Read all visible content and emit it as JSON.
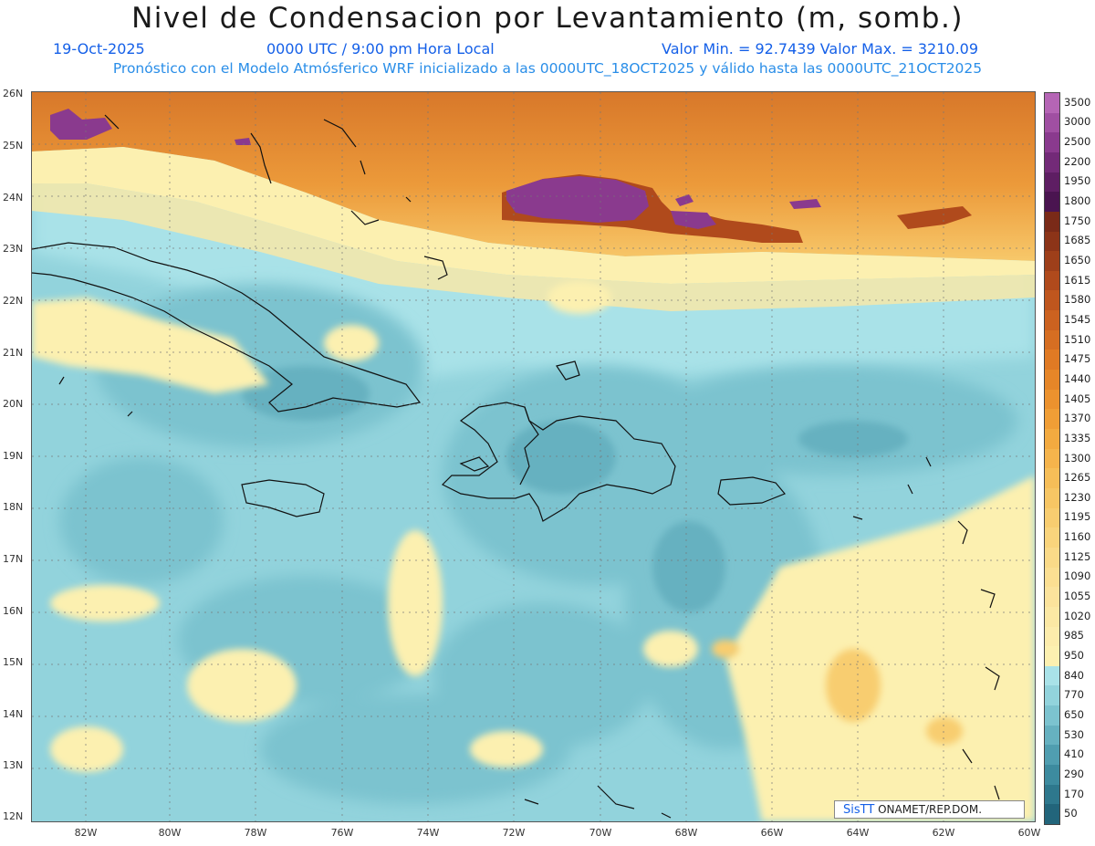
{
  "header": {
    "title": "Nivel de Condensacion por Levantamiento (m, somb.)",
    "date": "19-Oct-2025",
    "time": "0000 UTC / 9:00 pm Hora Local",
    "values": "Valor Min. = 92.7439   Valor Max. = 3210.09",
    "model_line": "Pronóstico con el Modelo Atmósferico WRF inicializado a las 0000UTC_18OCT2025 y válido hasta las  0000UTC_21OCT2025"
  },
  "map": {
    "lat_labels": [
      "26N",
      "25N",
      "24N",
      "23N",
      "22N",
      "21N",
      "20N",
      "19N",
      "18N",
      "17N",
      "16N",
      "15N",
      "14N",
      "13N",
      "12N"
    ],
    "lon_labels": [
      "82W",
      "80W",
      "78W",
      "76W",
      "74W",
      "72W",
      "70W",
      "68W",
      "66W",
      "64W",
      "62W",
      "60W"
    ]
  },
  "colorbar": {
    "labels": [
      "3500",
      "3000",
      "2500",
      "2200",
      "1950",
      "1800",
      "1750",
      "1685",
      "1650",
      "1615",
      "1580",
      "1545",
      "1510",
      "1475",
      "1440",
      "1405",
      "1370",
      "1335",
      "1300",
      "1265",
      "1230",
      "1195",
      "1160",
      "1125",
      "1090",
      "1055",
      "1020",
      "985",
      "950",
      "840",
      "770",
      "650",
      "530",
      "410",
      "290",
      "170",
      "50"
    ],
    "colors": [
      "#b565b5",
      "#a04fa2",
      "#8a3a8e",
      "#732a78",
      "#5e1e63",
      "#4a1450",
      "#7a2a18",
      "#8c3418",
      "#9e3f1a",
      "#b04a1c",
      "#bf561e",
      "#cc6220",
      "#d66e22",
      "#e07a24",
      "#e68628",
      "#ec922e",
      "#f09e36",
      "#f3aa40",
      "#f5b44c",
      "#f6be58",
      "#f7c664",
      "#f8cd70",
      "#f9d47c",
      "#fada88",
      "#fbdf92",
      "#fbe39c",
      "#fbe8a4",
      "#fcecac",
      "#fcf0b0",
      "#a9e2e8",
      "#92d3dc",
      "#7cc3cf",
      "#66b1c0",
      "#509eb0",
      "#3d8b9f",
      "#2e788d",
      "#22657b"
    ]
  },
  "credit": {
    "logo": "SisTT",
    "text": " ONAMET/REP.DOM."
  }
}
